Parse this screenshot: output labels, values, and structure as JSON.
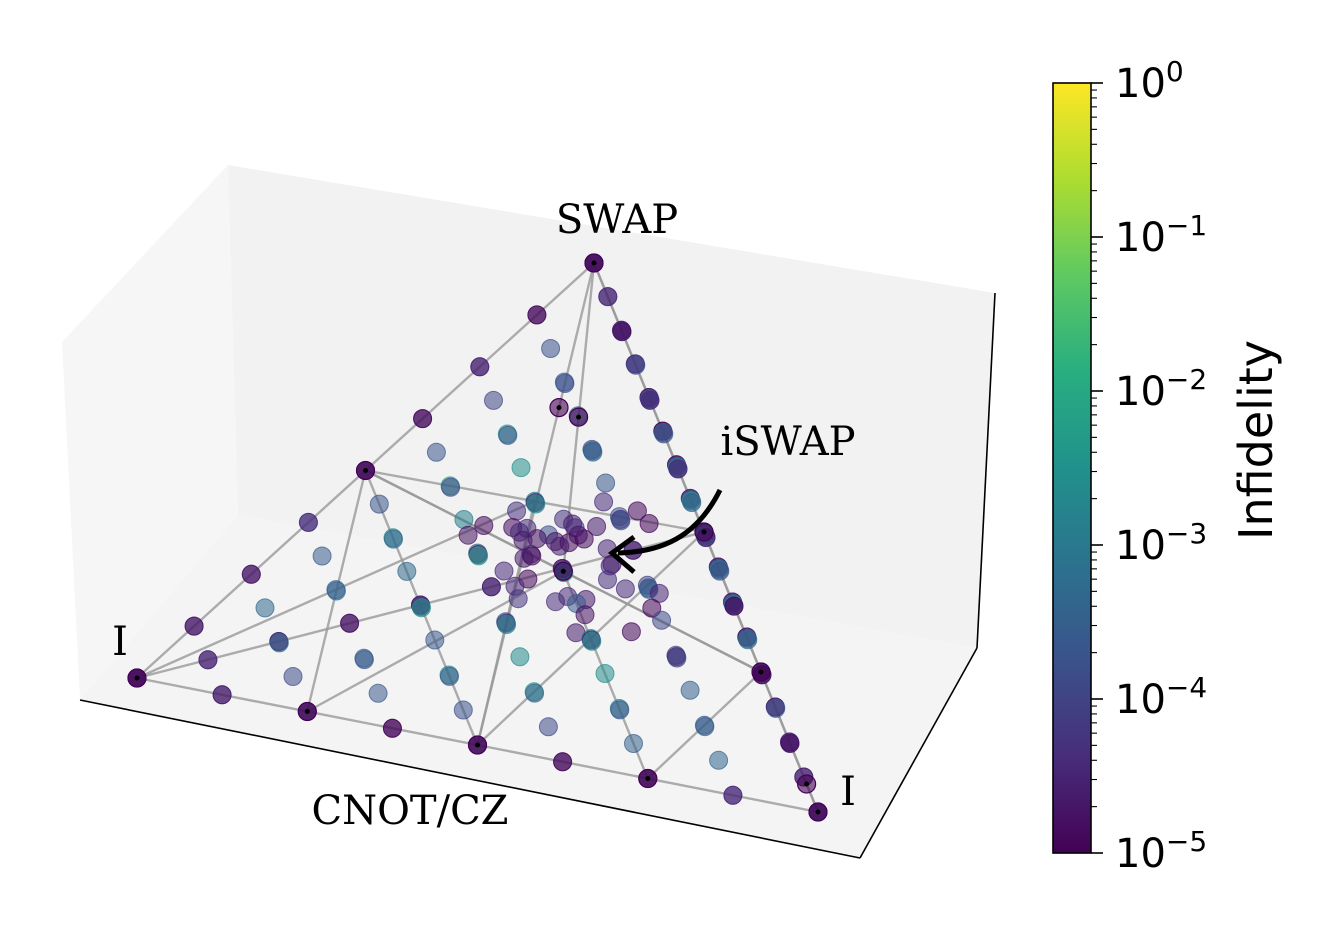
{
  "chart_data": {
    "type": "scatter",
    "title": "",
    "annotations": [
      {
        "name": "vertex-swap",
        "text": "SWAP"
      },
      {
        "name": "vertex-iswap",
        "text": "iSWAP"
      },
      {
        "name": "vertex-identity-left",
        "text": "I"
      },
      {
        "name": "vertex-identity-right",
        "text": "I"
      },
      {
        "name": "vertex-cnot-cz",
        "text": "CNOT/CZ"
      }
    ],
    "colorbar": {
      "label": "Infidelity",
      "scale": "log",
      "range": [
        1e-05,
        1
      ],
      "colormap": "viridis",
      "ticks": [
        {
          "base": "10",
          "exp": "0"
        },
        {
          "base": "10",
          "exp": "−1"
        },
        {
          "base": "10",
          "exp": "−2"
        },
        {
          "base": "10",
          "exp": "−3"
        },
        {
          "base": "10",
          "exp": "−4"
        },
        {
          "base": "10",
          "exp": "−5"
        }
      ],
      "tick_values": [
        1,
        0.1,
        0.01,
        0.001,
        0.0001,
        1e-05
      ]
    },
    "grid": false,
    "pane_color": "#f2f2f2",
    "line_color": "#999999",
    "marker_alpha": 0.55
  }
}
